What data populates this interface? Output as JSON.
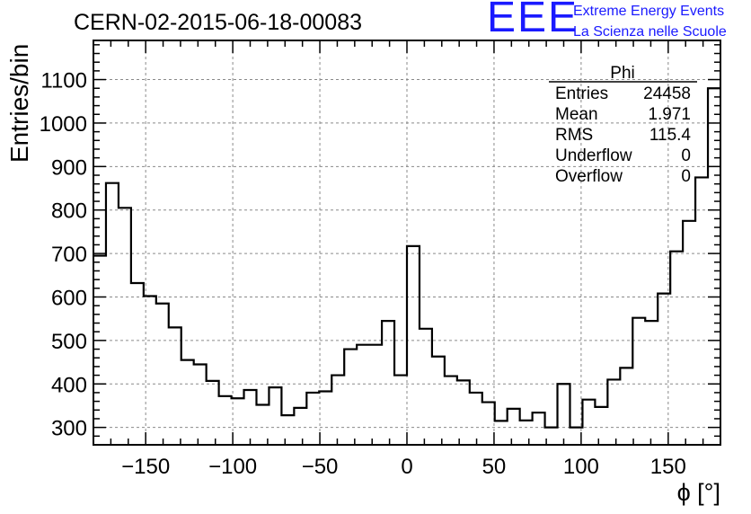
{
  "run_title": "CERN-02-2015-06-18-00083",
  "logo": {
    "mark": "EEE",
    "line1": "Extreme Energy Events",
    "line2": "La Scienza nelle Scuole"
  },
  "stats": {
    "name": "Phi",
    "rows": [
      {
        "label": "Entries",
        "value": "24458"
      },
      {
        "label": "Mean",
        "value": "1.971"
      },
      {
        "label": "RMS",
        "value": "115.4"
      },
      {
        "label": "Underflow",
        "value": "0"
      },
      {
        "label": "Overflow",
        "value": "0"
      }
    ]
  },
  "colors": {
    "line": "#000000",
    "grid": "#8a8a8a",
    "logo": "#1a1aff"
  },
  "chart_data": {
    "type": "histogram",
    "title": "CERN-02-2015-06-18-00083",
    "xlabel": "ϕ [°]",
    "ylabel": "Entries/bin",
    "xlim": [
      -180,
      180
    ],
    "ylim": [
      260,
      1190
    ],
    "xticks": [
      -150,
      -100,
      -50,
      0,
      50,
      100,
      150
    ],
    "xtick_labels": [
      "−150",
      "−100",
      "−50",
      "0",
      "50",
      "100",
      "150"
    ],
    "yticks": [
      300,
      400,
      500,
      600,
      700,
      800,
      900,
      1000,
      1100
    ],
    "bin_width": 7.2,
    "bin_values": [
      695,
      862,
      805,
      632,
      602,
      585,
      530,
      455,
      445,
      407,
      372,
      367,
      386,
      352,
      392,
      328,
      345,
      380,
      383,
      420,
      480,
      490,
      490,
      545,
      420,
      717,
      527,
      463,
      418,
      408,
      380,
      358,
      315,
      343,
      316,
      334,
      300,
      400,
      300,
      364,
      347,
      410,
      437,
      552,
      545,
      608,
      705,
      775,
      875,
      1080
    ],
    "grid": true
  }
}
